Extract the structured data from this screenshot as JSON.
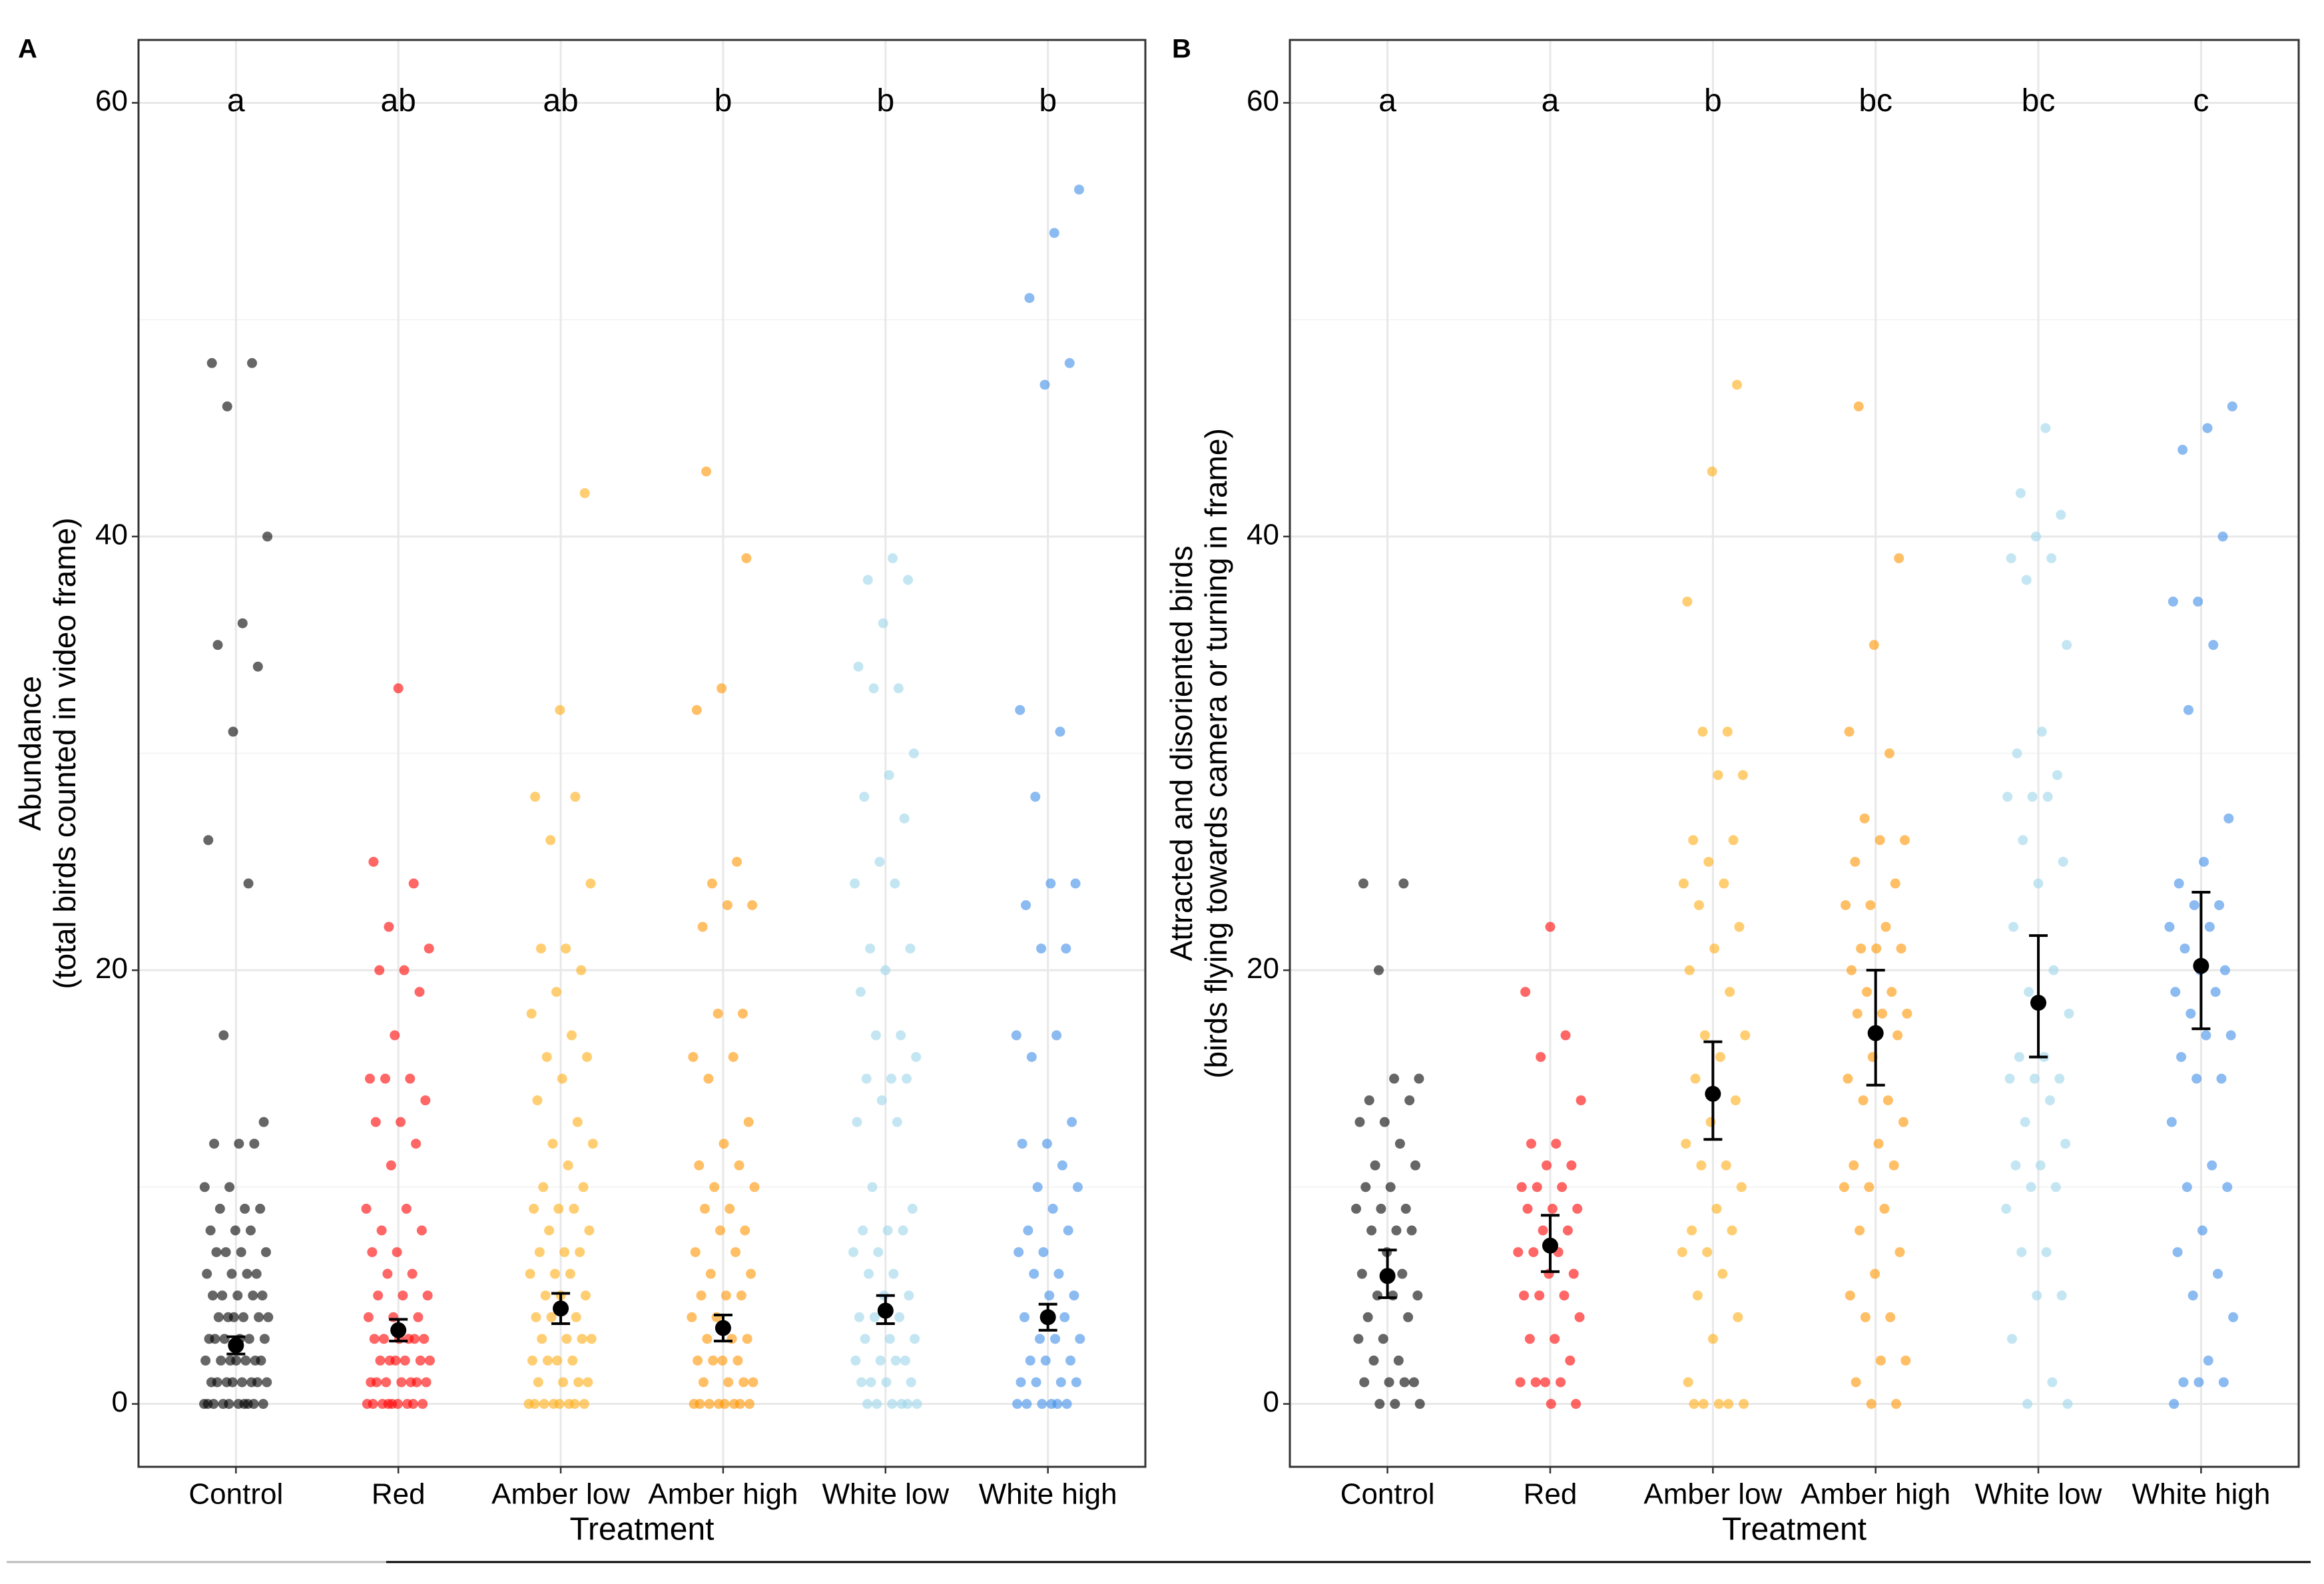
{
  "chart_data": [
    {
      "type": "strip",
      "panel_label": "A",
      "ylabel": [
        "Abundance",
        "(total birds counted in video frame)"
      ],
      "xlabel": "Treatment",
      "categories": [
        "Control",
        "Red",
        "Amber low",
        "Amber high",
        "White low",
        "White high"
      ],
      "letters": [
        "a",
        "ab",
        "ab",
        "b",
        "b",
        "b"
      ],
      "ylim": [
        -2.9,
        62.9
      ],
      "yticks": [
        0,
        20,
        40,
        60
      ],
      "minor_yticks": [
        10,
        30,
        50
      ],
      "grid": true,
      "groups": [
        {
          "color": "#000000",
          "mean": 2.7,
          "lower": 2.3,
          "upper": 3.1,
          "values": [
            48,
            48,
            46,
            40,
            36,
            35,
            34,
            31,
            26,
            24,
            17,
            13,
            12,
            12,
            12,
            10,
            10,
            9,
            9,
            9,
            8,
            8,
            8,
            7,
            7,
            7,
            7,
            6,
            6,
            6,
            6,
            5,
            5,
            5,
            5,
            5,
            4,
            4,
            4,
            4,
            4,
            4,
            3,
            3,
            3,
            3,
            3,
            3,
            2,
            2,
            2,
            2,
            2,
            2,
            2,
            1,
            1,
            1,
            1,
            1,
            1,
            1,
            1,
            0,
            0,
            0,
            0,
            0,
            0,
            0,
            0,
            0,
            0
          ]
        },
        {
          "color": "#ff0000",
          "mean": 3.4,
          "lower": 2.9,
          "upper": 3.9,
          "values": [
            33,
            25,
            24,
            22,
            21,
            20,
            20,
            19,
            17,
            15,
            15,
            15,
            14,
            13,
            13,
            12,
            11,
            9,
            9,
            8,
            8,
            7,
            7,
            6,
            6,
            5,
            5,
            5,
            4,
            4,
            4,
            3,
            3,
            3,
            3,
            3,
            3,
            2,
            2,
            2,
            2,
            2,
            2,
            1,
            1,
            1,
            1,
            1,
            1,
            1,
            0,
            0,
            0,
            0,
            0,
            0,
            0,
            0,
            0
          ]
        },
        {
          "color": "#ffad14",
          "mean": 4.4,
          "lower": 3.7,
          "upper": 5.1,
          "values": [
            42,
            32,
            28,
            28,
            26,
            24,
            21,
            21,
            20,
            19,
            18,
            17,
            16,
            16,
            15,
            14,
            13,
            12,
            12,
            11,
            10,
            10,
            9,
            9,
            9,
            8,
            8,
            7,
            7,
            7,
            6,
            6,
            6,
            5,
            5,
            5,
            4,
            4,
            4,
            3,
            3,
            3,
            3,
            2,
            2,
            2,
            2,
            1,
            1,
            1,
            1,
            0,
            0,
            0,
            0,
            0,
            0,
            0,
            0
          ]
        },
        {
          "color": "#ff9500",
          "mean": 3.5,
          "lower": 2.9,
          "upper": 4.1,
          "values": [
            43,
            39,
            33,
            32,
            25,
            24,
            23,
            23,
            22,
            18,
            18,
            16,
            16,
            15,
            13,
            12,
            11,
            11,
            10,
            10,
            9,
            9,
            8,
            8,
            7,
            7,
            6,
            6,
            5,
            5,
            5,
            4,
            4,
            3,
            3,
            3,
            2,
            2,
            2,
            2,
            1,
            1,
            1,
            1,
            0,
            0,
            0,
            0,
            0,
            0,
            0,
            0
          ]
        },
        {
          "color": "#9dd6ea",
          "mean": 4.3,
          "lower": 3.7,
          "upper": 5.0,
          "values": [
            39,
            38,
            38,
            36,
            34,
            33,
            33,
            30,
            29,
            28,
            27,
            25,
            24,
            24,
            21,
            21,
            20,
            19,
            17,
            17,
            16,
            15,
            15,
            15,
            14,
            13,
            13,
            10,
            9,
            8,
            8,
            8,
            7,
            7,
            6,
            6,
            5,
            5,
            4,
            4,
            4,
            3,
            3,
            3,
            2,
            2,
            2,
            2,
            1,
            1,
            1,
            1,
            0,
            0,
            0,
            0,
            0,
            0
          ]
        },
        {
          "color": "#3d8de8",
          "mean": 4.0,
          "lower": 3.4,
          "upper": 4.6,
          "values": [
            56,
            54,
            51,
            48,
            47,
            32,
            31,
            28,
            24,
            24,
            23,
            21,
            21,
            17,
            17,
            16,
            13,
            12,
            12,
            11,
            10,
            10,
            9,
            8,
            8,
            7,
            7,
            6,
            6,
            5,
            5,
            4,
            4,
            3,
            3,
            3,
            2,
            2,
            2,
            1,
            1,
            1,
            1,
            0,
            0,
            0,
            0,
            0,
            0
          ]
        }
      ]
    },
    {
      "type": "strip",
      "panel_label": "B",
      "ylabel": [
        "Attracted and disoriented birds",
        "(birds flying towards camera or turning in frame)"
      ],
      "xlabel": "Treatment",
      "categories": [
        "Control",
        "Red",
        "Amber low",
        "Amber high",
        "White low",
        "White high"
      ],
      "letters": [
        "a",
        "a",
        "b",
        "bc",
        "bc",
        "c"
      ],
      "ylim": [
        -2.9,
        62.9
      ],
      "yticks": [
        0,
        20,
        40,
        60
      ],
      "minor_yticks": [
        10,
        30,
        50
      ],
      "grid": true,
      "groups": [
        {
          "color": "#000000",
          "mean": 5.9,
          "lower": 4.9,
          "upper": 7.1,
          "values": [
            24,
            24,
            20,
            15,
            15,
            14,
            14,
            13,
            13,
            12,
            11,
            11,
            10,
            10,
            9,
            9,
            9,
            8,
            8,
            8,
            7,
            6,
            6,
            5,
            5,
            5,
            4,
            4,
            3,
            3,
            2,
            2,
            1,
            1,
            1,
            1,
            0,
            0,
            0
          ]
        },
        {
          "color": "#ff0000",
          "mean": 7.3,
          "lower": 6.1,
          "upper": 8.7,
          "values": [
            22,
            19,
            17,
            16,
            14,
            12,
            12,
            11,
            11,
            10,
            10,
            10,
            9,
            9,
            9,
            8,
            8,
            7,
            7,
            7,
            6,
            6,
            5,
            5,
            5,
            4,
            3,
            3,
            2,
            1,
            1,
            1,
            1,
            0,
            0
          ]
        },
        {
          "color": "#ffad14",
          "mean": 14.3,
          "lower": 12.2,
          "upper": 16.7,
          "values": [
            47,
            43,
            37,
            31,
            31,
            29,
            29,
            26,
            26,
            25,
            24,
            24,
            23,
            22,
            21,
            20,
            19,
            17,
            17,
            16,
            15,
            14,
            13,
            12,
            11,
            11,
            10,
            9,
            8,
            8,
            7,
            7,
            6,
            5,
            4,
            3,
            1,
            0,
            0,
            0,
            0,
            0
          ]
        },
        {
          "color": "#ff9500",
          "mean": 17.1,
          "lower": 14.7,
          "upper": 20.0,
          "values": [
            46,
            39,
            35,
            31,
            30,
            27,
            26,
            26,
            25,
            24,
            23,
            23,
            22,
            21,
            21,
            21,
            20,
            19,
            19,
            18,
            18,
            18,
            17,
            16,
            15,
            14,
            14,
            13,
            12,
            11,
            11,
            10,
            10,
            9,
            8,
            7,
            6,
            5,
            4,
            4,
            2,
            2,
            1,
            0,
            0
          ]
        },
        {
          "color": "#9dd6ea",
          "mean": 18.5,
          "lower": 16.0,
          "upper": 21.6,
          "values": [
            45,
            42,
            41,
            40,
            39,
            39,
            38,
            35,
            31,
            30,
            29,
            28,
            28,
            28,
            26,
            25,
            24,
            22,
            20,
            19,
            18,
            16,
            16,
            15,
            15,
            15,
            14,
            13,
            12,
            11,
            11,
            10,
            10,
            9,
            7,
            7,
            5,
            5,
            3,
            1,
            0,
            0
          ]
        },
        {
          "color": "#3d8de8",
          "mean": 20.2,
          "lower": 17.3,
          "upper": 23.6,
          "values": [
            46,
            45,
            44,
            40,
            37,
            37,
            35,
            32,
            27,
            25,
            24,
            23,
            23,
            22,
            22,
            21,
            20,
            20,
            19,
            19,
            18,
            17,
            17,
            16,
            15,
            15,
            13,
            11,
            10,
            10,
            8,
            7,
            6,
            5,
            4,
            2,
            1,
            1,
            1,
            0
          ]
        }
      ]
    }
  ]
}
